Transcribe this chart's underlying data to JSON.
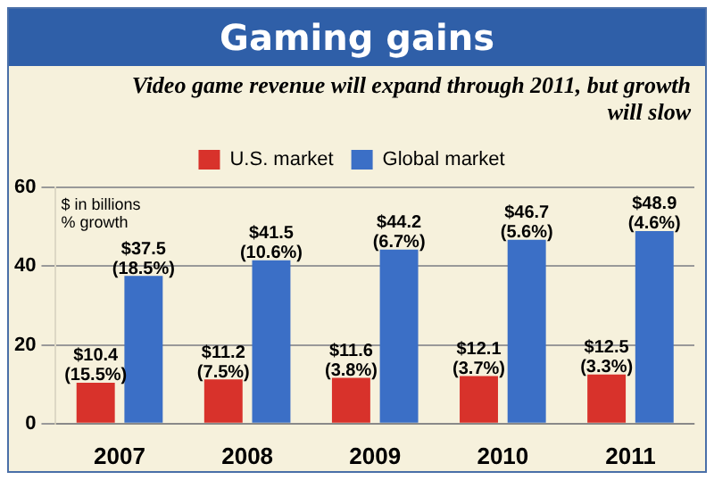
{
  "chart_data": {
    "type": "bar",
    "title": "Gaming gains",
    "subtitle": "Video game revenue will expand through 2011, but growth will slow",
    "annotations": [
      "$ in billions",
      "% growth"
    ],
    "categories": [
      "2007",
      "2008",
      "2009",
      "2010",
      "2011"
    ],
    "series": [
      {
        "name": "U.S. market",
        "color": "#d8322b",
        "values": [
          10.4,
          11.2,
          11.6,
          12.1,
          12.5
        ],
        "value_labels": [
          "$10.4 (15.5%)",
          "$11.2 (7.5%)",
          "$11.6 (3.8%)",
          "$12.1 (3.7%)",
          "$12.5 (3.3%)"
        ]
      },
      {
        "name": "Global market",
        "color": "#3b6fc6",
        "values": [
          37.5,
          41.5,
          44.2,
          46.7,
          48.9
        ],
        "value_labels": [
          "$37.5 (18.5%)",
          "$41.5 (10.6%)",
          "$44.2 (6.7%)",
          "$46.7 (5.6%)",
          "$48.9 (4.6%)"
        ]
      }
    ],
    "ylim": [
      0,
      60
    ],
    "yticks": [
      0,
      20,
      40,
      60
    ],
    "grid": "y",
    "legend": "top"
  }
}
